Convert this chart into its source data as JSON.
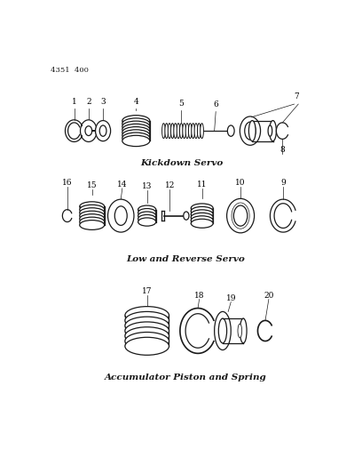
{
  "bg_color": "#ffffff",
  "line_color": "#1a1a1a",
  "page_ref": "4351  400",
  "section1_label": "Kickdown Servo",
  "section2_label": "Low and Reverse Servo",
  "section3_label": "Accumulator Piston and Spring",
  "label_fontsize": 7.5,
  "part_num_fontsize": 6.5
}
